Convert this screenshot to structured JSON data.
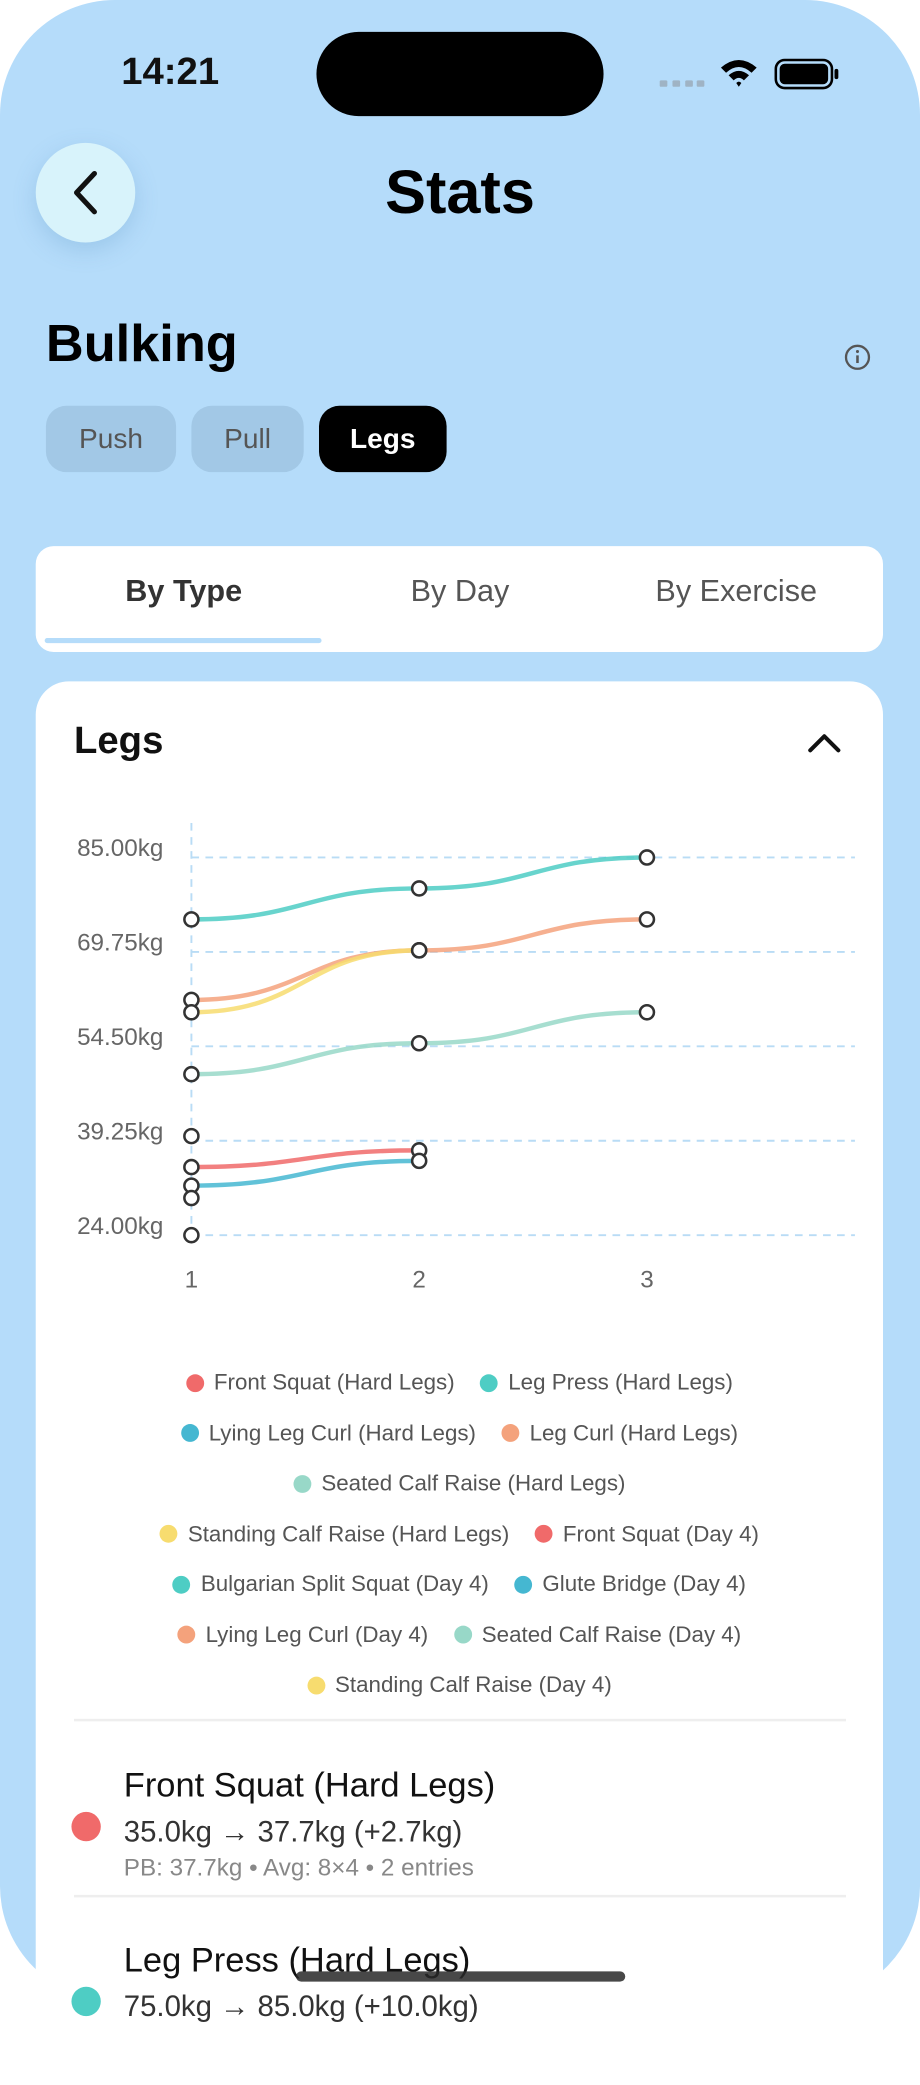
{
  "status_bar": {
    "time": "14:21"
  },
  "header": {
    "title": "Stats"
  },
  "plan": {
    "title": "Bulking",
    "chips": [
      "Push",
      "Pull",
      "Legs"
    ],
    "active_chip": 2
  },
  "tabs": {
    "items": [
      "By Type",
      "By Day",
      "By Exercise"
    ],
    "active": 0
  },
  "card": {
    "title": "Legs"
  },
  "chart_data": {
    "type": "line",
    "categories": [
      "1",
      "2",
      "3"
    ],
    "ylim": [
      24,
      85
    ],
    "yticks": [
      {
        "value": 24,
        "label": "24.00kg"
      },
      {
        "value": 39.25,
        "label": "39.25kg"
      },
      {
        "value": 54.5,
        "label": "54.50kg"
      },
      {
        "value": 69.75,
        "label": "69.75kg"
      },
      {
        "value": 85,
        "label": "85.00kg"
      }
    ],
    "grid": true,
    "series": [
      {
        "name": "Front Squat (Hard Legs)",
        "color": "#f06a6a",
        "values": [
          35,
          37.7,
          null
        ]
      },
      {
        "name": "Leg Press (Hard Legs)",
        "color": "#4ecdc4",
        "values": [
          75,
          80,
          85
        ]
      },
      {
        "name": "Lying Leg Curl (Hard Legs)",
        "color": "#45b7d1",
        "values": [
          32,
          36,
          null
        ]
      },
      {
        "name": "Leg Curl (Hard Legs)",
        "color": "#f4a27c",
        "values": [
          62,
          70,
          75
        ]
      },
      {
        "name": "Seated Calf Raise (Hard Legs)",
        "color": "#98d8c8",
        "values": [
          50,
          55,
          60
        ]
      },
      {
        "name": "Standing Calf Raise (Hard Legs)",
        "color": "#f7dc6f",
        "values": [
          60,
          70,
          null
        ]
      },
      {
        "name": "Front Squat (Day 4)",
        "color": "#f06a6a",
        "values": [
          24,
          null,
          null
        ]
      },
      {
        "name": "Bulgarian Split Squat (Day 4)",
        "color": "#4ecdc4",
        "values": [
          30,
          null,
          null
        ]
      },
      {
        "name": "Glute Bridge (Day 4)",
        "color": "#45b7d1",
        "values": [
          40,
          null,
          null
        ]
      },
      {
        "name": "Lying Leg Curl (Day 4)",
        "color": "#f4a27c",
        "values": [
          null,
          null,
          null
        ]
      },
      {
        "name": "Seated Calf Raise (Day 4)",
        "color": "#98d8c8",
        "values": [
          null,
          null,
          null
        ]
      },
      {
        "name": "Standing Calf Raise (Day 4)",
        "color": "#f7dc6f",
        "values": [
          null,
          null,
          null
        ]
      }
    ]
  },
  "entries": [
    {
      "name": "Front Squat (Hard Legs)",
      "color": "#f06a6a",
      "change": "35.0kg → 37.7kg (+2.7kg)",
      "details": "PB: 37.7kg • Avg: 8×4 • 2 entries"
    },
    {
      "name": "Leg Press (Hard Legs)",
      "color": "#4ecdc4",
      "change": "75.0kg → 85.0kg (+10.0kg)"
    }
  ]
}
